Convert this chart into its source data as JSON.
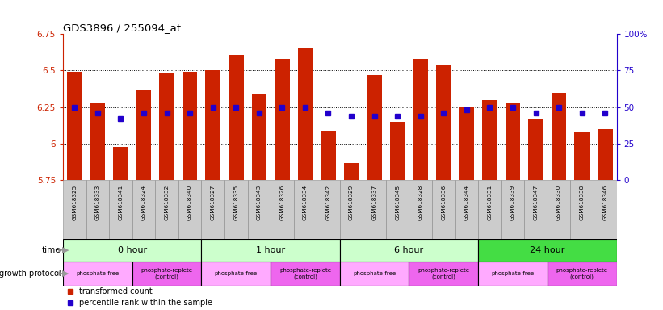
{
  "title": "GDS3896 / 255094_at",
  "samples": [
    "GSM618325",
    "GSM618333",
    "GSM618341",
    "GSM618324",
    "GSM618332",
    "GSM618340",
    "GSM618327",
    "GSM618335",
    "GSM618343",
    "GSM618326",
    "GSM618334",
    "GSM618342",
    "GSM618329",
    "GSM618337",
    "GSM618345",
    "GSM618328",
    "GSM618336",
    "GSM618344",
    "GSM618331",
    "GSM618339",
    "GSM618347",
    "GSM618330",
    "GSM618338",
    "GSM618346"
  ],
  "bar_values": [
    6.49,
    6.28,
    5.98,
    6.37,
    6.48,
    6.49,
    6.5,
    6.61,
    6.34,
    6.58,
    6.66,
    6.09,
    5.87,
    6.47,
    6.15,
    6.58,
    6.54,
    6.25,
    6.3,
    6.28,
    6.17,
    6.35,
    6.08,
    6.1
  ],
  "percentile_values": [
    50,
    46,
    42,
    46,
    46,
    46,
    50,
    50,
    46,
    50,
    50,
    46,
    44,
    44,
    44,
    44,
    46,
    48,
    50,
    50,
    46,
    50,
    46,
    46
  ],
  "ymin": 5.75,
  "ymax": 6.75,
  "yticks": [
    5.75,
    6.0,
    6.25,
    6.5,
    6.75
  ],
  "ytick_labels": [
    "5.75",
    "6",
    "6.25",
    "6.5",
    "6.75"
  ],
  "right_yticks": [
    0,
    25,
    50,
    75,
    100
  ],
  "right_ytick_labels": [
    "0",
    "25",
    "50",
    "75",
    "100%"
  ],
  "hlines": [
    6.0,
    6.25,
    6.5
  ],
  "bar_color": "#CC2200",
  "percentile_color": "#2200CC",
  "groups": [
    {
      "label": "0 hour",
      "start": 0,
      "end": 6,
      "color": "#CCFFCC"
    },
    {
      "label": "1 hour",
      "start": 6,
      "end": 12,
      "color": "#CCFFCC"
    },
    {
      "label": "6 hour",
      "start": 12,
      "end": 18,
      "color": "#CCFFCC"
    },
    {
      "label": "24 hour",
      "start": 18,
      "end": 24,
      "color": "#44DD44"
    }
  ],
  "protocols": [
    {
      "label": "phosphate-free",
      "start": 0,
      "end": 3,
      "color": "#FFAAFF"
    },
    {
      "label": "phosphate-replete\n(control)",
      "start": 3,
      "end": 6,
      "color": "#EE66EE"
    },
    {
      "label": "phosphate-free",
      "start": 6,
      "end": 9,
      "color": "#FFAAFF"
    },
    {
      "label": "phosphate-replete\n(control)",
      "start": 9,
      "end": 12,
      "color": "#EE66EE"
    },
    {
      "label": "phosphate-free",
      "start": 12,
      "end": 15,
      "color": "#FFAAFF"
    },
    {
      "label": "phosphate-replete\n(control)",
      "start": 15,
      "end": 18,
      "color": "#EE66EE"
    },
    {
      "label": "phosphate-free",
      "start": 18,
      "end": 21,
      "color": "#FFAAFF"
    },
    {
      "label": "phosphate-replete\n(control)",
      "start": 21,
      "end": 24,
      "color": "#EE66EE"
    }
  ],
  "left_axis_color": "#CC2200",
  "right_axis_color": "#2200CC",
  "tick_bg_color": "#CCCCCC",
  "legend_bar_label": "transformed count",
  "legend_pct_label": "percentile rank within the sample"
}
